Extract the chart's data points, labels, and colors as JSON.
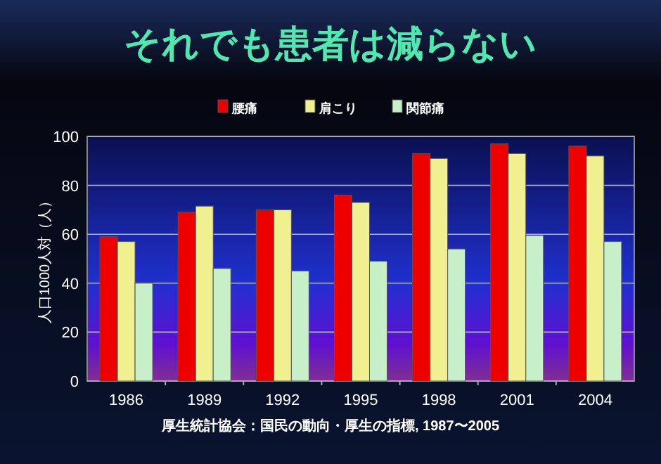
{
  "chart_data": {
    "type": "bar",
    "title": "それでも患者は減らない",
    "ylabel": "人口1000人対（人）",
    "categories": [
      "1986",
      "1989",
      "1992",
      "1995",
      "1998",
      "2001",
      "2004"
    ],
    "series": [
      {
        "name": "腰痛",
        "color": "#ee0000",
        "values": [
          59,
          69,
          70,
          76,
          93,
          97,
          96
        ]
      },
      {
        "name": "肩こり",
        "color": "#f0f090",
        "values": [
          57,
          71.5,
          70,
          73,
          91,
          93,
          92
        ]
      },
      {
        "name": "関節痛",
        "color": "#c8f0c8",
        "values": [
          40,
          46,
          45,
          49,
          54,
          59.5,
          57
        ]
      }
    ],
    "ylim": [
      0,
      100
    ],
    "yticks": [
      0,
      20,
      40,
      60,
      80,
      100
    ],
    "grid": "y",
    "legend": "top",
    "annotations": [
      "厚生統計協会：国民の動向・厚生の指標, 1987〜2005"
    ]
  }
}
